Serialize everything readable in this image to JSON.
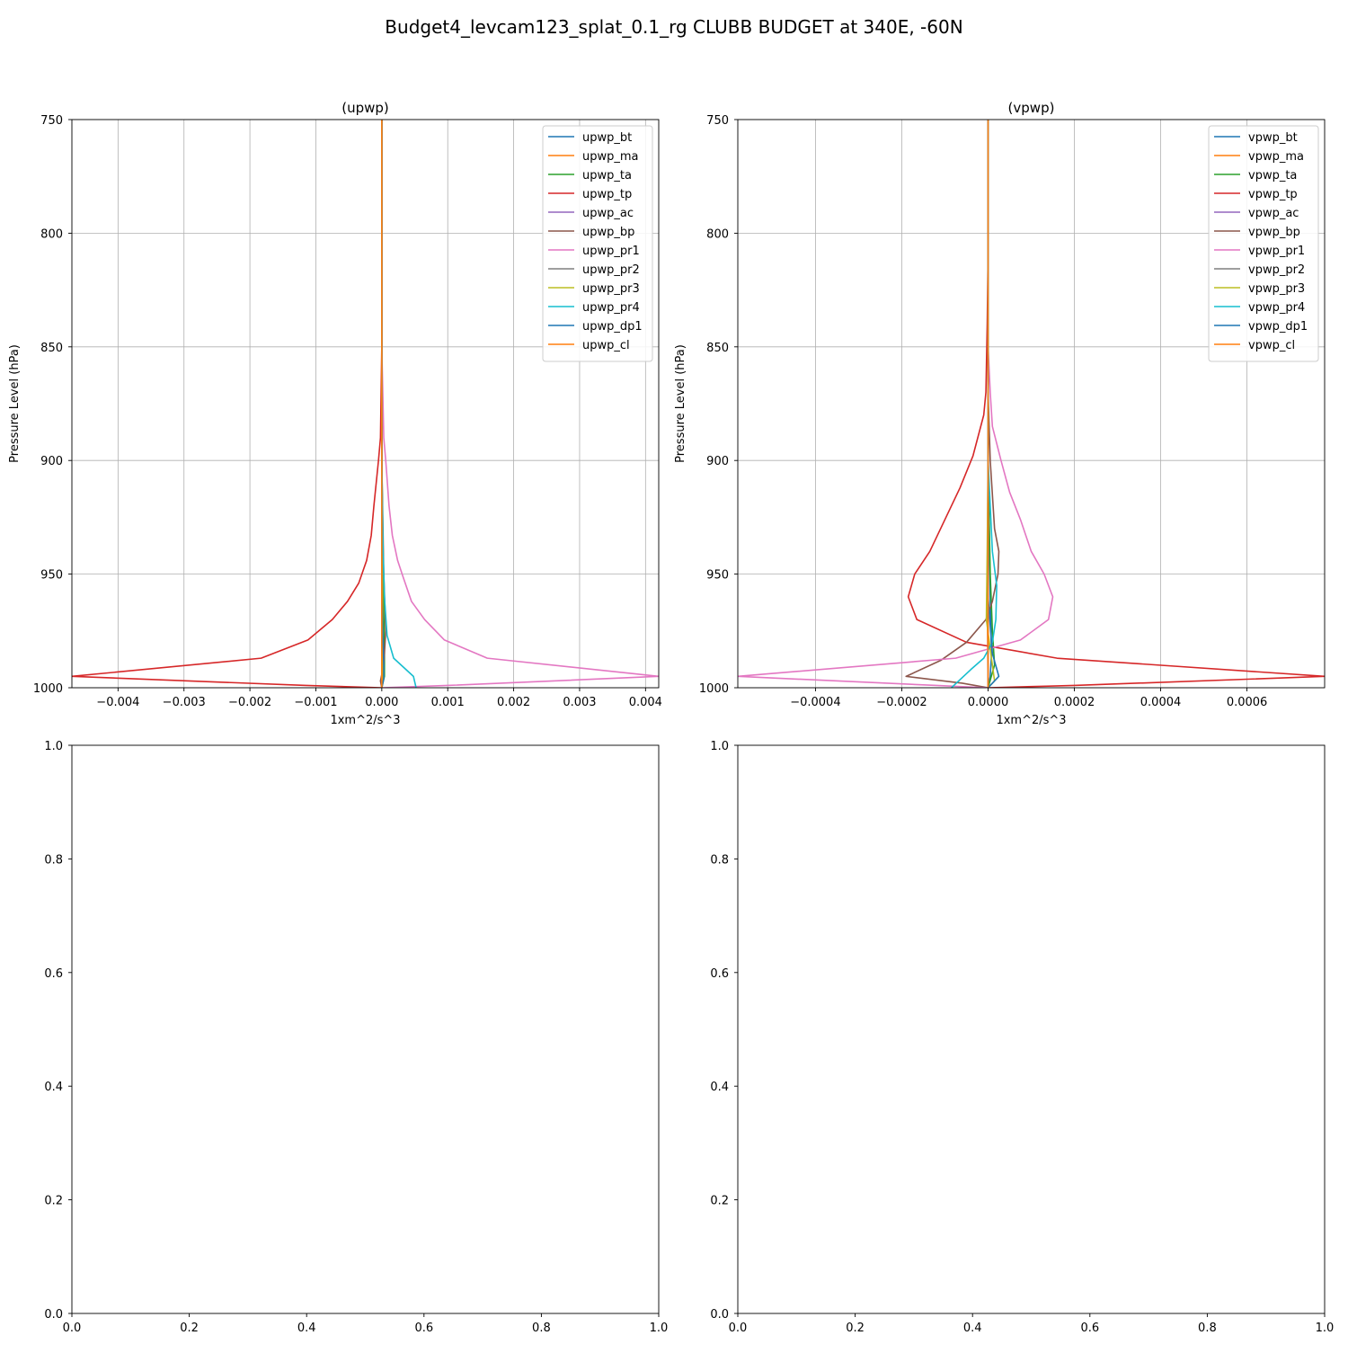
{
  "figure": {
    "title": "Budget4_levcam123_splat_0.1_rg CLUBB BUDGET at 340E, -60N"
  },
  "chart_data": [
    {
      "type": "line",
      "title": "(upwp)",
      "xlabel": "1xm^2/s^3",
      "ylabel": "Pressure Level (hPa)",
      "xlim": [
        -0.0047,
        0.0042
      ],
      "ylim": [
        1000,
        750
      ],
      "grid": true,
      "legend_position": "top-right",
      "x_ticks": [
        -0.004,
        -0.003,
        -0.002,
        -0.001,
        0.0,
        0.001,
        0.002,
        0.003,
        0.004
      ],
      "x_tick_labels": [
        "−0.004",
        "−0.003",
        "−0.002",
        "−0.001",
        "0.000",
        "0.001",
        "0.002",
        "0.003",
        "0.004"
      ],
      "y_ticks": [
        750,
        800,
        850,
        900,
        950,
        1000
      ],
      "y_tick_labels": [
        "750",
        "800",
        "850",
        "900",
        "950",
        "1000"
      ],
      "series": [
        {
          "name": "upwp_bt",
          "color": "#1f77b4",
          "points": [
            [
              0,
              750
            ],
            [
              0,
              900
            ],
            [
              0,
              960
            ],
            [
              1e-05,
              990
            ],
            [
              1e-05,
              995
            ],
            [
              0,
              1000
            ]
          ]
        },
        {
          "name": "upwp_ma",
          "color": "#ff7f0e",
          "points": [
            [
              0,
              750
            ],
            [
              0,
              900
            ],
            [
              0,
              1000
            ]
          ]
        },
        {
          "name": "upwp_ta",
          "color": "#2ca02c",
          "points": [
            [
              0,
              750
            ],
            [
              0,
              900
            ],
            [
              2e-05,
              950
            ],
            [
              4e-05,
              985
            ],
            [
              4e-05,
              995
            ],
            [
              0,
              1000
            ]
          ]
        },
        {
          "name": "upwp_tp",
          "color": "#d62728",
          "points": [
            [
              0,
              750
            ],
            [
              0,
              850
            ],
            [
              -2e-05,
              890
            ],
            [
              -5e-05,
              900
            ],
            [
              -0.00012,
              920
            ],
            [
              -0.00016,
              933
            ],
            [
              -0.00023,
              944
            ],
            [
              -0.00035,
              954
            ],
            [
              -0.00052,
              962
            ],
            [
              -0.00075,
              970
            ],
            [
              -0.00112,
              979
            ],
            [
              -0.00183,
              987
            ],
            [
              -0.0047,
              995
            ],
            [
              -0.00115,
              999
            ],
            [
              0,
              1000
            ]
          ]
        },
        {
          "name": "upwp_ac",
          "color": "#9467bd",
          "points": [
            [
              0,
              750
            ],
            [
              0,
              1000
            ]
          ]
        },
        {
          "name": "upwp_bp",
          "color": "#8c564b",
          "points": [
            [
              0,
              750
            ],
            [
              0,
              900
            ],
            [
              3e-05,
              950
            ],
            [
              6e-05,
              975
            ],
            [
              3e-05,
              990
            ],
            [
              -2e-05,
              997
            ],
            [
              0,
              1000
            ]
          ]
        },
        {
          "name": "upwp_pr1",
          "color": "#e377c2",
          "points": [
            [
              0,
              750
            ],
            [
              0,
              850
            ],
            [
              3e-05,
              890
            ],
            [
              6e-05,
              900
            ],
            [
              0.00011,
              920
            ],
            [
              0.00016,
              933
            ],
            [
              0.00024,
              944
            ],
            [
              0.00032,
              951
            ],
            [
              0.00045,
              962
            ],
            [
              0.00065,
              970
            ],
            [
              0.00095,
              979
            ],
            [
              0.0016,
              987
            ],
            [
              0.0042,
              995
            ],
            [
              0.001,
              999
            ],
            [
              0,
              1000
            ]
          ]
        },
        {
          "name": "upwp_pr2",
          "color": "#7f7f7f",
          "points": [
            [
              0,
              750
            ],
            [
              0,
              1000
            ]
          ]
        },
        {
          "name": "upwp_pr3",
          "color": "#bcbd22",
          "points": [
            [
              0,
              750
            ],
            [
              0,
              900
            ],
            [
              1e-05,
              960
            ],
            [
              2e-05,
              995
            ],
            [
              0,
              1000
            ]
          ]
        },
        {
          "name": "upwp_pr4",
          "color": "#17becf",
          "points": [
            [
              0,
              750
            ],
            [
              0,
              900
            ],
            [
              2e-05,
              940
            ],
            [
              4e-05,
              960
            ],
            [
              8e-05,
              977
            ],
            [
              0.00018,
              987
            ],
            [
              0.00048,
              995
            ],
            [
              0.00052,
              1000
            ]
          ]
        },
        {
          "name": "upwp_dp1",
          "color": "#1f77b4",
          "points": [
            [
              0,
              750
            ],
            [
              0,
              960
            ],
            [
              3e-05,
              990
            ],
            [
              3e-05,
              996
            ],
            [
              0,
              1000
            ]
          ]
        },
        {
          "name": "upwp_cl",
          "color": "#ff7f0e",
          "points": [
            [
              0,
              750
            ],
            [
              0,
              1000
            ]
          ]
        }
      ]
    },
    {
      "type": "line",
      "title": "(vpwp)",
      "xlabel": "1xm^2/s^3",
      "ylabel": "Pressure Level (hPa)",
      "xlim": [
        -0.00058,
        0.00078
      ],
      "ylim": [
        1000,
        750
      ],
      "grid": true,
      "legend_position": "top-right",
      "x_ticks": [
        -0.0004,
        -0.0002,
        0.0,
        0.0002,
        0.0004,
        0.0006
      ],
      "x_tick_labels": [
        "−0.0004",
        "−0.0002",
        "0.0000",
        "0.0002",
        "0.0004",
        "0.0006"
      ],
      "y_ticks": [
        750,
        800,
        850,
        900,
        950,
        1000
      ],
      "y_tick_labels": [
        "750",
        "800",
        "850",
        "900",
        "950",
        "1000"
      ],
      "series": [
        {
          "name": "vpwp_bt",
          "color": "#1f77b4",
          "points": [
            [
              0,
              750
            ],
            [
              0,
              900
            ],
            [
              5e-06,
              960
            ],
            [
              8e-06,
              985
            ],
            [
              5e-06,
              995
            ],
            [
              0,
              1000
            ]
          ]
        },
        {
          "name": "vpwp_ma",
          "color": "#ff7f0e",
          "points": [
            [
              0,
              750
            ],
            [
              0,
              900
            ],
            [
              -2e-06,
              960
            ],
            [
              0,
              1000
            ]
          ]
        },
        {
          "name": "vpwp_ta",
          "color": "#2ca02c",
          "points": [
            [
              0,
              750
            ],
            [
              0,
              900
            ],
            [
              5e-06,
              950
            ],
            [
              1e-05,
              975
            ],
            [
              1.5e-05,
              990
            ],
            [
              0,
              1000
            ]
          ]
        },
        {
          "name": "vpwp_tp",
          "color": "#d62728",
          "points": [
            [
              0,
              750
            ],
            [
              0,
              810
            ],
            [
              -2e-06,
              840
            ],
            [
              -5e-06,
              870
            ],
            [
              -1e-05,
              880
            ],
            [
              -3.5e-05,
              898
            ],
            [
              -6.5e-05,
              912
            ],
            [
              -0.0001,
              926
            ],
            [
              -0.000135,
              940
            ],
            [
              -0.00017,
              950
            ],
            [
              -0.000185,
              960
            ],
            [
              -0.000165,
              970
            ],
            [
              -5e-05,
              980
            ],
            [
              0.00016,
              987
            ],
            [
              0.00078,
              995
            ],
            [
              0.0002,
              999
            ],
            [
              0,
              1000
            ]
          ]
        },
        {
          "name": "vpwp_ac",
          "color": "#9467bd",
          "points": [
            [
              0,
              750
            ],
            [
              0,
              1000
            ]
          ]
        },
        {
          "name": "vpwp_bp",
          "color": "#8c564b",
          "points": [
            [
              0,
              750
            ],
            [
              0,
              870
            ],
            [
              5e-06,
              900
            ],
            [
              1.5e-05,
              930
            ],
            [
              2.5e-05,
              940
            ],
            [
              2.3e-05,
              950
            ],
            [
              1e-05,
              962
            ],
            [
              -5e-06,
              970
            ],
            [
              -5e-05,
              980
            ],
            [
              -0.00011,
              988
            ],
            [
              -0.00019,
              995
            ],
            [
              -6e-05,
              998
            ],
            [
              0,
              1000
            ]
          ]
        },
        {
          "name": "vpwp_pr1",
          "color": "#e377c2",
          "points": [
            [
              0,
              750
            ],
            [
              0,
              850
            ],
            [
              5e-06,
              870
            ],
            [
              1e-05,
              885
            ],
            [
              3e-05,
              900
            ],
            [
              5e-05,
              914
            ],
            [
              7.5e-05,
              926
            ],
            [
              0.0001,
              940
            ],
            [
              0.00013,
              950
            ],
            [
              0.00015,
              960
            ],
            [
              0.00014,
              970
            ],
            [
              7.5e-05,
              979
            ],
            [
              -7.5e-05,
              987
            ],
            [
              -0.00058,
              995
            ],
            [
              -0.00012,
              999
            ],
            [
              0,
              1000
            ]
          ]
        },
        {
          "name": "vpwp_pr2",
          "color": "#7f7f7f",
          "points": [
            [
              0,
              750
            ],
            [
              0,
              1000
            ]
          ]
        },
        {
          "name": "vpwp_pr3",
          "color": "#bcbd22",
          "points": [
            [
              0,
              750
            ],
            [
              0,
              900
            ],
            [
              -2e-06,
              940
            ],
            [
              -4e-06,
              970
            ],
            [
              1e-05,
              990
            ],
            [
              1.5e-05,
              997
            ],
            [
              0,
              1000
            ]
          ]
        },
        {
          "name": "vpwp_pr4",
          "color": "#17becf",
          "points": [
            [
              0,
              750
            ],
            [
              0,
              900
            ],
            [
              1e-05,
              940
            ],
            [
              2e-05,
              955
            ],
            [
              1.8e-05,
              970
            ],
            [
              1e-05,
              980
            ],
            [
              -1e-05,
              987
            ],
            [
              -4e-05,
              992
            ],
            [
              -8.5e-05,
              1000
            ]
          ]
        },
        {
          "name": "vpwp_dp1",
          "color": "#1f77b4",
          "points": [
            [
              0,
              750
            ],
            [
              0,
              960
            ],
            [
              1e-05,
              985
            ],
            [
              2.5e-05,
              995
            ],
            [
              0,
              1000
            ]
          ]
        },
        {
          "name": "vpwp_cl",
          "color": "#ff7f0e",
          "points": [
            [
              0,
              750
            ],
            [
              0,
              1000
            ]
          ]
        }
      ]
    },
    {
      "type": "line",
      "title": "",
      "xlim": [
        0,
        1
      ],
      "ylim": [
        0,
        1
      ],
      "grid": false,
      "x_ticks": [
        0.0,
        0.2,
        0.4,
        0.6,
        0.8,
        1.0
      ],
      "x_tick_labels": [
        "0.0",
        "0.2",
        "0.4",
        "0.6",
        "0.8",
        "1.0"
      ],
      "y_ticks": [
        0.0,
        0.2,
        0.4,
        0.6,
        0.8,
        1.0
      ],
      "y_tick_labels": [
        "0.0",
        "0.2",
        "0.4",
        "0.6",
        "0.8",
        "1.0"
      ],
      "series": []
    },
    {
      "type": "line",
      "title": "",
      "xlim": [
        0,
        1
      ],
      "ylim": [
        0,
        1
      ],
      "grid": false,
      "x_ticks": [
        0.0,
        0.2,
        0.4,
        0.6,
        0.8,
        1.0
      ],
      "x_tick_labels": [
        "0.0",
        "0.2",
        "0.4",
        "0.6",
        "0.8",
        "1.0"
      ],
      "y_ticks": [
        0.0,
        0.2,
        0.4,
        0.6,
        0.8,
        1.0
      ],
      "y_tick_labels": [
        "0.0",
        "0.2",
        "0.4",
        "0.6",
        "0.8",
        "1.0"
      ],
      "series": []
    }
  ]
}
